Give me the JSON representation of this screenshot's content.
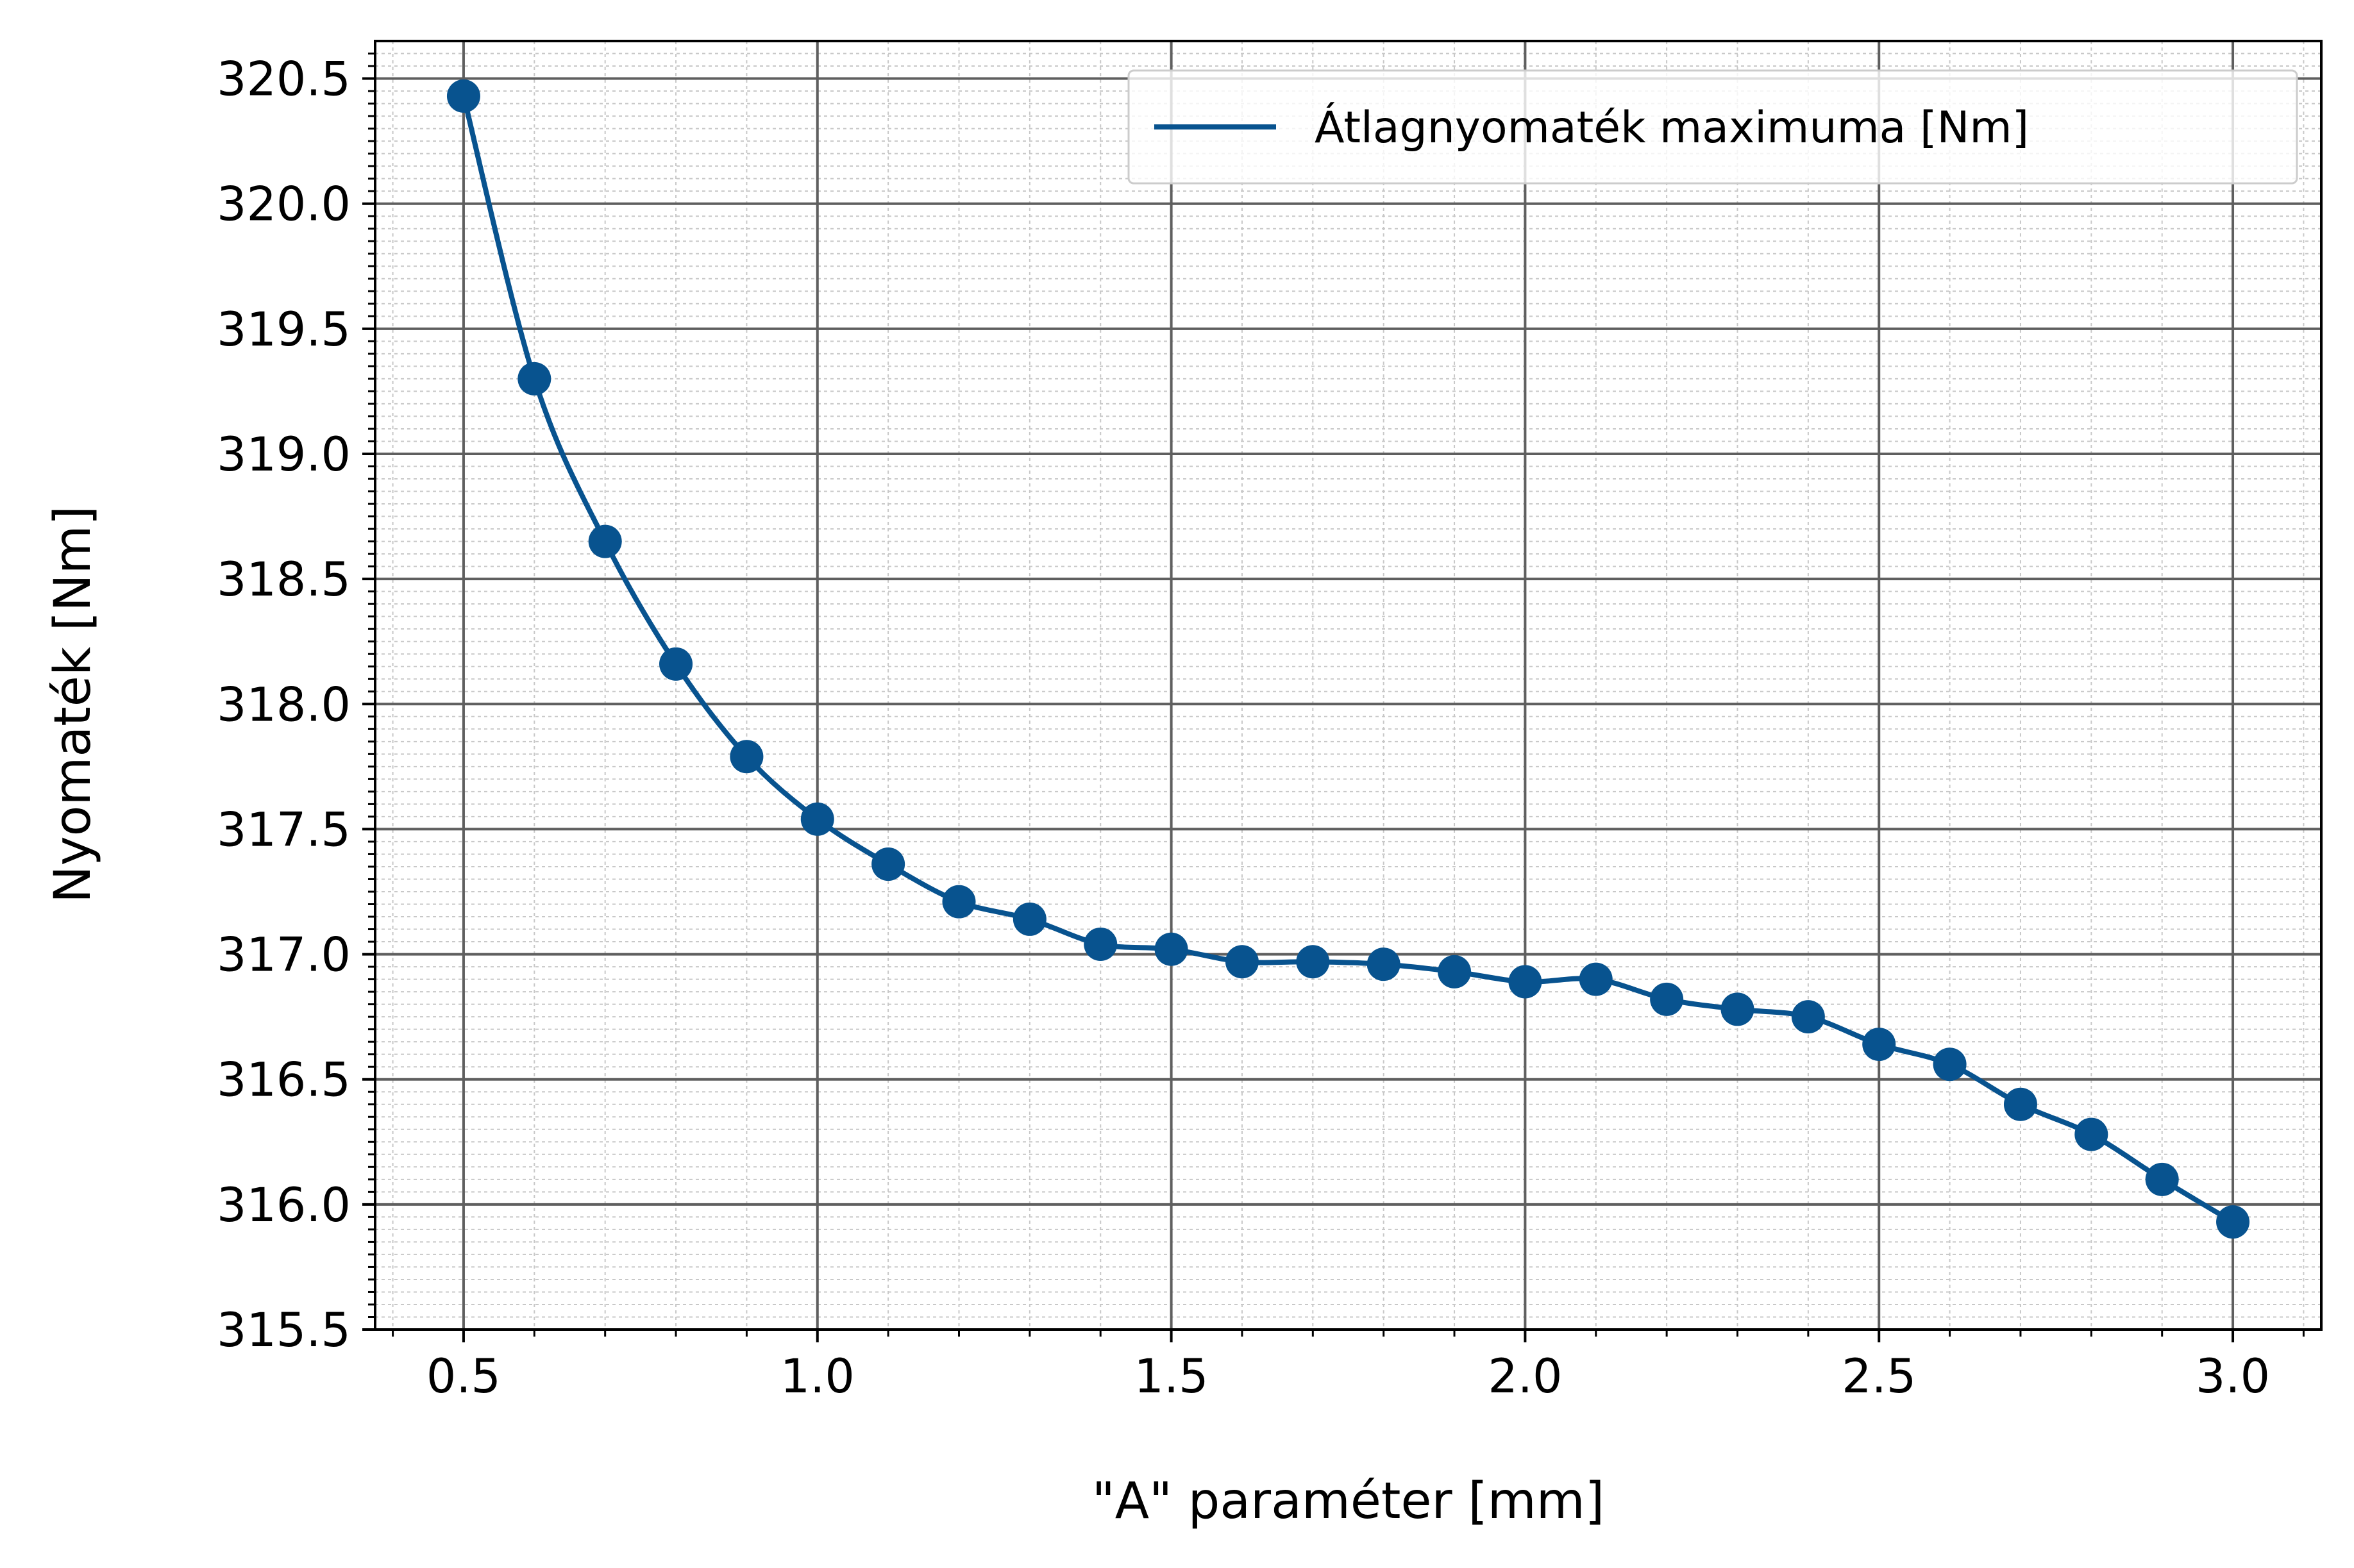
{
  "chart_data": {
    "type": "line",
    "title": "",
    "xlabel": "\"A\" paraméter [mm]",
    "ylabel": "Nyomaték [Nm]",
    "xlim": [
      0.375,
      3.125
    ],
    "ylim": [
      315.5,
      320.65
    ],
    "x_ticks": [
      0.5,
      1.0,
      1.5,
      2.0,
      2.5,
      3.0
    ],
    "x_tick_labels": [
      "0.5",
      "1.0",
      "1.5",
      "2.0",
      "2.5",
      "3.0"
    ],
    "x_minor_step": 0.1,
    "y_ticks": [
      315.5,
      316.0,
      316.5,
      317.0,
      317.5,
      318.0,
      318.5,
      319.0,
      319.5,
      320.0,
      320.5
    ],
    "y_tick_labels": [
      "315.5",
      "316.0",
      "316.5",
      "317.0",
      "317.5",
      "318.0",
      "318.5",
      "319.0",
      "319.5",
      "320.0",
      "320.5"
    ],
    "y_minor_step": 0.05,
    "grid": "major and minor",
    "legend_position": "top-right",
    "series": [
      {
        "name": "Átlagnyomaték maximuma [Nm]",
        "color": "#08538f",
        "marker": "circle",
        "smooth": true,
        "x": [
          0.5,
          0.6,
          0.7,
          0.8,
          0.9,
          1.0,
          1.1,
          1.2,
          1.3,
          1.4,
          1.5,
          1.6,
          1.7,
          1.8,
          1.9,
          2.0,
          2.1,
          2.2,
          2.3,
          2.4,
          2.5,
          2.6,
          2.7,
          2.8,
          2.9,
          3.0
        ],
        "y": [
          320.43,
          319.3,
          318.65,
          318.16,
          317.79,
          317.54,
          317.36,
          317.21,
          317.14,
          317.04,
          317.02,
          316.97,
          316.97,
          316.96,
          316.93,
          316.89,
          316.9,
          316.82,
          316.78,
          316.75,
          316.64,
          316.56,
          316.4,
          316.28,
          316.1,
          315.93
        ]
      }
    ]
  }
}
